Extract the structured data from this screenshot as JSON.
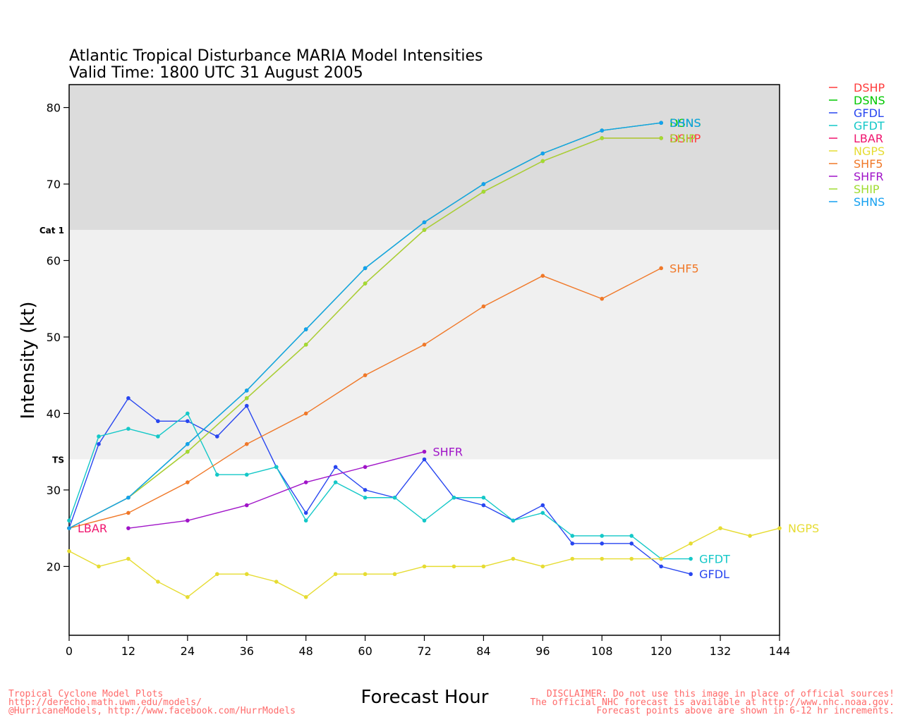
{
  "chart_data": {
    "type": "line",
    "title": "Atlantic Tropical Disturbance MARIA Model Intensities",
    "subtitle": "Valid Time: 1800 UTC 31 August 2005",
    "xlabel": "Forecast Hour",
    "ylabel": "Intensity (kt)",
    "xlim": [
      0,
      144
    ],
    "ylim": [
      11,
      83
    ],
    "xticks": [
      0,
      12,
      24,
      36,
      48,
      60,
      72,
      84,
      96,
      108,
      120,
      132,
      144
    ],
    "yticks": [
      20,
      30,
      40,
      50,
      60,
      70,
      80
    ],
    "bands": [
      {
        "label": "TS",
        "from": 34,
        "to": 64,
        "color": "#f0f0f0"
      },
      {
        "label": "Cat 1",
        "from": 64,
        "to": 83,
        "color": "#dcdcdc"
      }
    ],
    "legend_position": "right",
    "series": [
      {
        "name": "DSHP",
        "color": "#ff3c3c",
        "points": [
          [
            0,
            25
          ],
          [
            12,
            29
          ],
          [
            24,
            35
          ],
          [
            36,
            42
          ],
          [
            48,
            49
          ],
          [
            60,
            57
          ],
          [
            72,
            64
          ],
          [
            84,
            69
          ],
          [
            96,
            73
          ],
          [
            108,
            76
          ],
          [
            120,
            76
          ]
        ]
      },
      {
        "name": "DSNS",
        "color": "#00c800",
        "points": [
          [
            0,
            25
          ],
          [
            12,
            29
          ],
          [
            24,
            36
          ],
          [
            36,
            43
          ],
          [
            48,
            51
          ],
          [
            60,
            59
          ],
          [
            72,
            65
          ],
          [
            84,
            70
          ],
          [
            96,
            74
          ],
          [
            108,
            77
          ],
          [
            120,
            78
          ]
        ]
      },
      {
        "name": "GFDL",
        "color": "#2846f0",
        "points": [
          [
            0,
            25
          ],
          [
            6,
            36
          ],
          [
            12,
            42
          ],
          [
            18,
            39
          ],
          [
            24,
            39
          ],
          [
            30,
            37
          ],
          [
            36,
            41
          ],
          [
            42,
            33
          ],
          [
            48,
            27
          ],
          [
            54,
            33
          ],
          [
            60,
            30
          ],
          [
            66,
            29
          ],
          [
            72,
            34
          ],
          [
            78,
            29
          ],
          [
            84,
            28
          ],
          [
            90,
            26
          ],
          [
            96,
            28
          ],
          [
            102,
            23
          ],
          [
            108,
            23
          ],
          [
            114,
            23
          ],
          [
            120,
            20
          ],
          [
            126,
            19
          ]
        ]
      },
      {
        "name": "GFDT",
        "color": "#14c8c8",
        "points": [
          [
            0,
            26
          ],
          [
            6,
            37
          ],
          [
            12,
            38
          ],
          [
            18,
            37
          ],
          [
            24,
            40
          ],
          [
            30,
            32
          ],
          [
            36,
            32
          ],
          [
            42,
            33
          ],
          [
            48,
            26
          ],
          [
            54,
            31
          ],
          [
            60,
            29
          ],
          [
            66,
            29
          ],
          [
            72,
            26
          ],
          [
            78,
            29
          ],
          [
            84,
            29
          ],
          [
            90,
            26
          ],
          [
            96,
            27
          ],
          [
            102,
            24
          ],
          [
            108,
            24
          ],
          [
            114,
            24
          ],
          [
            120,
            21
          ],
          [
            126,
            21
          ]
        ]
      },
      {
        "name": "LBAR",
        "color": "#f0146e",
        "points": [
          [
            0,
            25
          ]
        ]
      },
      {
        "name": "NGPS",
        "color": "#e6dc32",
        "points": [
          [
            0,
            22
          ],
          [
            6,
            20
          ],
          [
            12,
            21
          ],
          [
            18,
            18
          ],
          [
            24,
            16
          ],
          [
            30,
            19
          ],
          [
            36,
            19
          ],
          [
            42,
            18
          ],
          [
            48,
            16
          ],
          [
            54,
            19
          ],
          [
            60,
            19
          ],
          [
            66,
            19
          ],
          [
            72,
            20
          ],
          [
            78,
            20
          ],
          [
            84,
            20
          ],
          [
            90,
            21
          ],
          [
            96,
            20
          ],
          [
            102,
            21
          ],
          [
            108,
            21
          ],
          [
            114,
            21
          ],
          [
            120,
            21
          ],
          [
            126,
            23
          ],
          [
            132,
            25
          ],
          [
            138,
            24
          ],
          [
            144,
            25
          ]
        ]
      },
      {
        "name": "SHF5",
        "color": "#f07828",
        "points": [
          [
            0,
            25
          ],
          [
            12,
            27
          ],
          [
            24,
            31
          ],
          [
            36,
            36
          ],
          [
            48,
            40
          ],
          [
            60,
            45
          ],
          [
            72,
            49
          ],
          [
            84,
            54
          ],
          [
            96,
            58
          ],
          [
            108,
            55
          ],
          [
            120,
            59
          ]
        ]
      },
      {
        "name": "SHFR",
        "color": "#a014c8",
        "points": [
          [
            12,
            25
          ],
          [
            24,
            26
          ],
          [
            36,
            28
          ],
          [
            48,
            31
          ],
          [
            60,
            33
          ],
          [
            72,
            35
          ]
        ]
      },
      {
        "name": "SHIP",
        "color": "#a0dc32",
        "points": [
          [
            0,
            25
          ],
          [
            12,
            29
          ],
          [
            24,
            35
          ],
          [
            36,
            42
          ],
          [
            48,
            49
          ],
          [
            60,
            57
          ],
          [
            72,
            64
          ],
          [
            84,
            69
          ],
          [
            96,
            73
          ],
          [
            108,
            76
          ],
          [
            120,
            76
          ]
        ]
      },
      {
        "name": "SHNS",
        "color": "#14a0f0",
        "points": [
          [
            0,
            25
          ],
          [
            12,
            29
          ],
          [
            24,
            36
          ],
          [
            36,
            43
          ],
          [
            48,
            51
          ],
          [
            60,
            59
          ],
          [
            72,
            65
          ],
          [
            84,
            70
          ],
          [
            96,
            74
          ],
          [
            108,
            77
          ],
          [
            120,
            78
          ]
        ]
      }
    ]
  },
  "footer": {
    "left": [
      "Tropical Cyclone Model Plots",
      "http://derecho.math.uwm.edu/models/",
      "@HurricaneModels, http://www.facebook.com/HurrModels"
    ],
    "right": [
      "DISCLAIMER: Do not use this image in place of official sources!",
      "The official NHC forecast is available at http://www.nhc.noaa.gov.",
      "Forecast points above are shown in 6-12 hr increments."
    ]
  }
}
